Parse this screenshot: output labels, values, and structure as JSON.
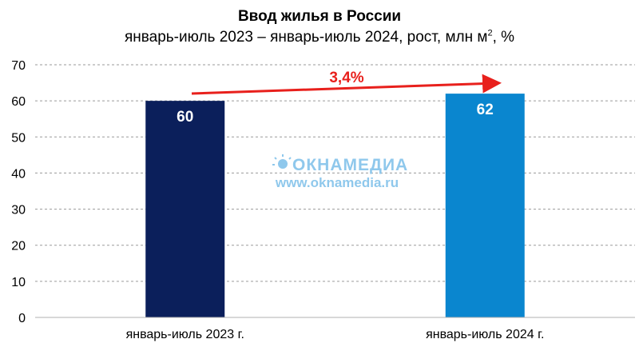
{
  "chart_data": {
    "type": "bar",
    "title": "Ввод жилья в России",
    "subtitle_main": "январь-июль 2023 – январь-июль 2024, рост, млн м",
    "subtitle_sup": "2",
    "subtitle_tail": ", %",
    "categories": [
      "январь-июль 2023 г.",
      "январь-июль 2024 г."
    ],
    "values": [
      60,
      62
    ],
    "data_labels": [
      "60",
      "62"
    ],
    "bar_colors": [
      "#0b1f5b",
      "#0a86cf"
    ],
    "ylim": [
      0,
      70
    ],
    "yticks": [
      "0",
      "10",
      "20",
      "30",
      "40",
      "50",
      "60",
      "70"
    ],
    "ytick_values": [
      0,
      10,
      20,
      30,
      40,
      50,
      60,
      70
    ],
    "grid": true,
    "annotation": {
      "text": "3,4%",
      "color": "#e8201c"
    },
    "xlabel": "",
    "ylabel": ""
  },
  "watermark": {
    "logo": "ОКНАМЕДИА",
    "url": "www.oknamedia.ru",
    "color": "#8fc8ec"
  }
}
